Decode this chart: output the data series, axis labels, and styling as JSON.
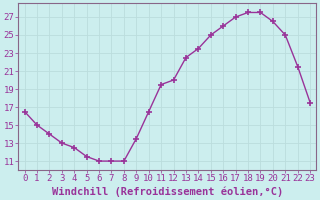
{
  "x": [
    0,
    1,
    2,
    3,
    4,
    5,
    6,
    7,
    8,
    9,
    10,
    11,
    12,
    13,
    14,
    15,
    16,
    17,
    18,
    19,
    20,
    21,
    22,
    23
  ],
  "y": [
    16.5,
    15.0,
    14.0,
    13.0,
    12.5,
    11.5,
    11.0,
    11.0,
    11.0,
    13.5,
    16.5,
    19.5,
    20.0,
    22.5,
    23.5,
    25.0,
    26.0,
    27.0,
    27.5,
    27.5,
    26.5,
    25.0,
    21.5,
    17.5
  ],
  "line_color": "#993399",
  "marker": "+",
  "marker_size": 4,
  "marker_linewidth": 1.2,
  "line_width": 1.0,
  "bg_color": "#cceeee",
  "grid_color": "#bbdddd",
  "xlabel": "Windchill (Refroidissement éolien,°C)",
  "xlabel_fontsize": 7.5,
  "ytick_labels": [
    "11",
    "13",
    "15",
    "17",
    "19",
    "21",
    "23",
    "25",
    "27"
  ],
  "ytick_values": [
    11,
    13,
    15,
    17,
    19,
    21,
    23,
    25,
    27
  ],
  "ylim": [
    10.0,
    28.5
  ],
  "xlim": [
    -0.5,
    23.5
  ],
  "xtick_labels": [
    "0",
    "1",
    "2",
    "3",
    "4",
    "5",
    "6",
    "7",
    "8",
    "9",
    "10",
    "11",
    "12",
    "13",
    "14",
    "15",
    "16",
    "17",
    "18",
    "19",
    "20",
    "21",
    "22",
    "23"
  ],
  "tick_fontsize": 6.5,
  "spine_color": "#886688"
}
